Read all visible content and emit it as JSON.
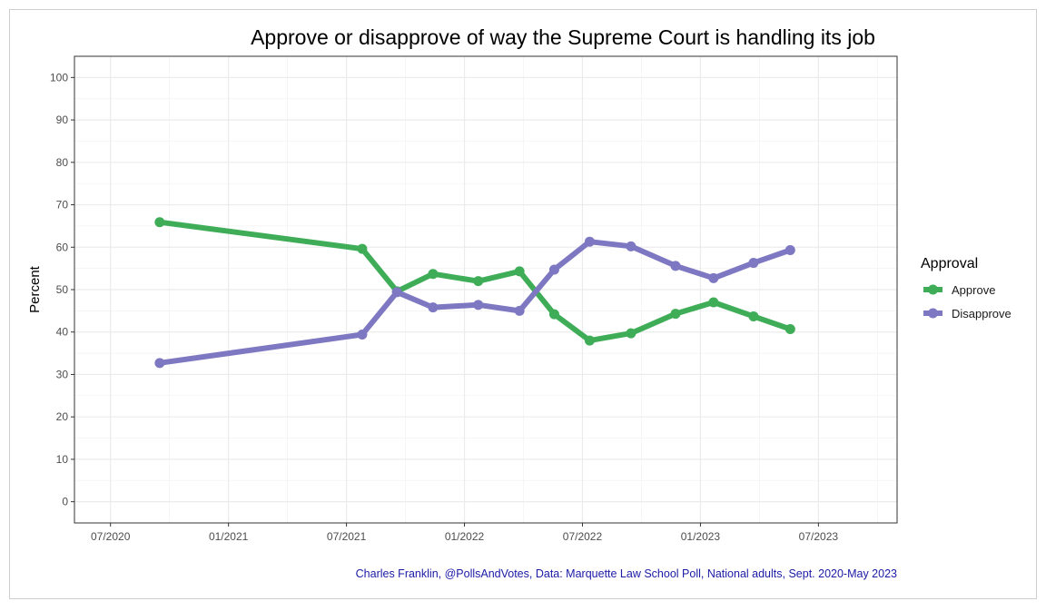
{
  "chart_data": {
    "type": "line",
    "title": "Approve or disapprove of way the Supreme Court is handling its job",
    "xlabel": "",
    "ylabel": "Percent",
    "ylim": [
      -5,
      105
    ],
    "xlim": [
      "2020-05-06",
      "2023-11-01"
    ],
    "y_ticks": [
      0,
      10,
      20,
      30,
      40,
      50,
      60,
      70,
      80,
      90,
      100
    ],
    "x_ticks": [
      {
        "date": "2020-07-01",
        "label": "07/2020"
      },
      {
        "date": "2021-01-01",
        "label": "01/2021"
      },
      {
        "date": "2021-07-01",
        "label": "07/2021"
      },
      {
        "date": "2022-01-01",
        "label": "01/2022"
      },
      {
        "date": "2022-07-01",
        "label": "07/2022"
      },
      {
        "date": "2023-01-01",
        "label": "01/2023"
      },
      {
        "date": "2023-07-01",
        "label": "07/2023"
      }
    ],
    "grid": true,
    "legend": {
      "title": "Approval",
      "position": "right"
    },
    "x": [
      "2020-09-16",
      "2021-07-25",
      "2021-09-18",
      "2021-11-13",
      "2022-01-22",
      "2022-03-25",
      "2022-05-18",
      "2022-07-12",
      "2022-09-15",
      "2022-11-23",
      "2023-01-21",
      "2023-03-22",
      "2023-05-18"
    ],
    "series": [
      {
        "name": "Approve",
        "color": "#3fad58",
        "values": [
          65.9,
          59.6,
          49.6,
          53.7,
          52.0,
          54.3,
          44.2,
          38.0,
          39.7,
          44.3,
          47.0,
          43.7,
          40.7
        ]
      },
      {
        "name": "Disapprove",
        "color": "#7d78c1",
        "values": [
          32.7,
          39.4,
          49.4,
          45.8,
          46.4,
          45.0,
          54.7,
          61.3,
          60.2,
          55.6,
          52.7,
          56.3,
          59.3
        ]
      }
    ],
    "caption": "Charles Franklin, @PollsAndVotes, Data: Marquette Law School Poll, National adults, Sept. 2020-May 2023"
  }
}
